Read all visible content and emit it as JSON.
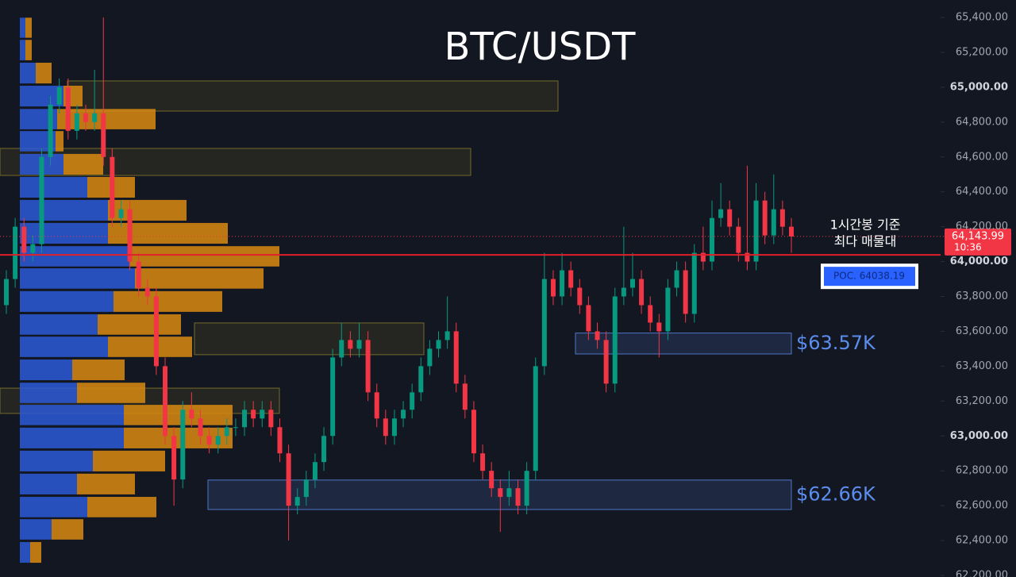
{
  "chart_data": {
    "type": "candlestick",
    "title": "BTC/USDT",
    "ylim": [
      62200,
      65400
    ],
    "yticks": [
      {
        "value": 65400,
        "label": "65,400.00"
      },
      {
        "value": 65200,
        "label": "65,200.00"
      },
      {
        "value": 65000,
        "label": "65,000.00"
      },
      {
        "value": 64800,
        "label": "64,800.00"
      },
      {
        "value": 64600,
        "label": "64,600.00"
      },
      {
        "value": 64400,
        "label": "64,400.00"
      },
      {
        "value": 64200,
        "label": "64,200.00"
      },
      {
        "value": 64000,
        "label": "64,000.00"
      },
      {
        "value": 63800,
        "label": "63,800.00"
      },
      {
        "value": 63600,
        "label": "63,600.00"
      },
      {
        "value": 63400,
        "label": "63,400.00"
      },
      {
        "value": 63200,
        "label": "63,200.00"
      },
      {
        "value": 63000,
        "label": "63,000.00"
      },
      {
        "value": 62800,
        "label": "62,800.00"
      },
      {
        "value": 62600,
        "label": "62,600.00"
      },
      {
        "value": 62400,
        "label": "62,400.00"
      },
      {
        "value": 62200,
        "label": "62,200.00"
      }
    ],
    "grid": false,
    "up_color": "#089981",
    "down_color": "#f23645",
    "candles": {
      "open": [
        63750,
        63900,
        64200,
        64050,
        64100,
        64600,
        64900,
        65000,
        64750,
        64850,
        64800,
        64850,
        64600,
        64250,
        64300,
        64000,
        63850,
        63800,
        63400,
        63000,
        62750,
        63150,
        63100,
        63000,
        62950,
        63000,
        63050,
        63050,
        63150,
        63100,
        63150,
        63050,
        62900,
        62600,
        62650,
        62750,
        62850,
        63000,
        63450,
        63550,
        63500,
        63550,
        63250,
        63100,
        63000,
        63100,
        63150,
        63250,
        63400,
        63500,
        63550,
        63600,
        63300,
        63150,
        62900,
        62800,
        62700,
        62650,
        62700,
        62600,
        62800,
        63400,
        63900,
        63800,
        63950,
        63850,
        63750,
        63600,
        63550,
        63300,
        63800,
        63850,
        63900,
        63750,
        63650,
        63600,
        63850,
        63950,
        63700,
        64050,
        64000,
        64250,
        64300,
        64200,
        64050,
        64000,
        64350,
        64150,
        64300,
        64200
      ],
      "high": [
        63950,
        64250,
        64250,
        64150,
        64650,
        64950,
        65050,
        65050,
        64900,
        64900,
        65100,
        65400,
        64650,
        64350,
        64350,
        64050,
        63900,
        63850,
        63450,
        63050,
        63200,
        63250,
        63150,
        63050,
        63050,
        63100,
        63100,
        63200,
        63200,
        63200,
        63200,
        63100,
        62950,
        62700,
        62800,
        62900,
        63050,
        63500,
        63650,
        63600,
        63650,
        63600,
        63300,
        63150,
        63150,
        63200,
        63300,
        63450,
        63550,
        63600,
        63800,
        63650,
        63350,
        63200,
        62950,
        62850,
        62750,
        62800,
        62750,
        62850,
        63450,
        64050,
        63950,
        64050,
        64000,
        63900,
        63800,
        63650,
        63600,
        63850,
        64200,
        64050,
        63950,
        63800,
        63700,
        63900,
        64000,
        64000,
        64100,
        64200,
        64350,
        64450,
        64350,
        64250,
        64550,
        64450,
        64400,
        64500,
        64350,
        64250
      ],
      "low": [
        63700,
        63850,
        64000,
        64000,
        64050,
        64550,
        64850,
        64700,
        64700,
        64750,
        64750,
        64550,
        64200,
        64200,
        63950,
        63800,
        63750,
        63350,
        62950,
        62600,
        62700,
        63050,
        62950,
        62900,
        62900,
        62950,
        63000,
        63000,
        63050,
        63050,
        63000,
        62850,
        62400,
        62550,
        62600,
        62700,
        62800,
        62950,
        63400,
        63450,
        63450,
        63200,
        63050,
        62950,
        62950,
        63050,
        63100,
        63200,
        63350,
        63450,
        63500,
        63250,
        63100,
        62850,
        62750,
        62650,
        62450,
        62600,
        62550,
        62550,
        62750,
        63350,
        63750,
        63750,
        63800,
        63700,
        63550,
        63500,
        63250,
        63250,
        63750,
        63800,
        63700,
        63600,
        63450,
        63550,
        63800,
        63650,
        63650,
        63950,
        63950,
        64200,
        64150,
        64000,
        63950,
        63950,
        64100,
        64100,
        64150,
        64050
      ],
      "close": [
        63900,
        64200,
        64050,
        64100,
        64600,
        64900,
        65000,
        64750,
        64850,
        64800,
        64850,
        64600,
        64250,
        64300,
        64000,
        63850,
        63800,
        63400,
        63000,
        62750,
        63150,
        63100,
        63000,
        62950,
        63000,
        63050,
        63050,
        63150,
        63100,
        63150,
        63050,
        62900,
        62600,
        62650,
        62750,
        62850,
        63000,
        63450,
        63550,
        63500,
        63550,
        63250,
        63100,
        63000,
        63100,
        63150,
        63250,
        63400,
        63500,
        63550,
        63600,
        63300,
        63150,
        62900,
        62800,
        62700,
        62650,
        62700,
        62600,
        62800,
        63400,
        63900,
        63800,
        63950,
        63850,
        63750,
        63600,
        63550,
        63300,
        63800,
        63850,
        63900,
        63750,
        63650,
        63600,
        63850,
        63950,
        63700,
        64050,
        64000,
        64250,
        64300,
        64200,
        64050,
        64000,
        64350,
        64150,
        64300,
        64200,
        64144
      ]
    },
    "profile": {
      "buy_color": "#2d5bd7",
      "sell_color": "#d98a10",
      "levels": [
        65341,
        65213,
        65081,
        64949,
        64817,
        64690,
        64558,
        64426,
        64294,
        64162,
        64030,
        63903,
        63771,
        63639,
        63511,
        63379,
        63247,
        63120,
        62988,
        62856,
        62724,
        62592,
        62464,
        62332
      ],
      "buy": [
        7,
        7,
        20,
        55,
        47,
        45,
        55,
        85,
        111,
        111,
        138,
        145,
        118,
        98,
        111,
        66,
        72,
        131,
        131,
        92,
        72,
        85,
        40,
        13
      ],
      "sell": [
        8,
        8,
        20,
        24,
        124,
        10,
        50,
        60,
        99,
        151,
        189,
        162,
        137,
        105,
        106,
        66,
        86,
        137,
        137,
        91,
        73,
        87,
        40,
        14
      ]
    },
    "zones": [
      {
        "ylim": [
          64863,
          65036
        ],
        "color": "#8a7d2a"
      },
      {
        "ylim": [
          64494,
          64649
        ],
        "color": "#8a7d2a"
      },
      {
        "ylim": [
          63466,
          63648
        ],
        "color": "#8a7d2a"
      },
      {
        "ylim": [
          63129,
          63274
        ],
        "color": "#8a7d2a"
      },
      {
        "ylim": [
          63470,
          63590
        ],
        "color": "#5b8def",
        "label": "$63.57K"
      },
      {
        "ylim": [
          62578,
          62747
        ],
        "color": "#5b8def",
        "label": "$62.66K"
      }
    ],
    "poc": {
      "value": 64038.19,
      "label": "POC. 64038.19",
      "color": "#e0202a"
    },
    "last_price": {
      "value": 64143.99,
      "label": "64,143.99",
      "countdown": "10:36"
    },
    "annotation": [
      "1시간봉 기준",
      "최다 매물대"
    ]
  }
}
